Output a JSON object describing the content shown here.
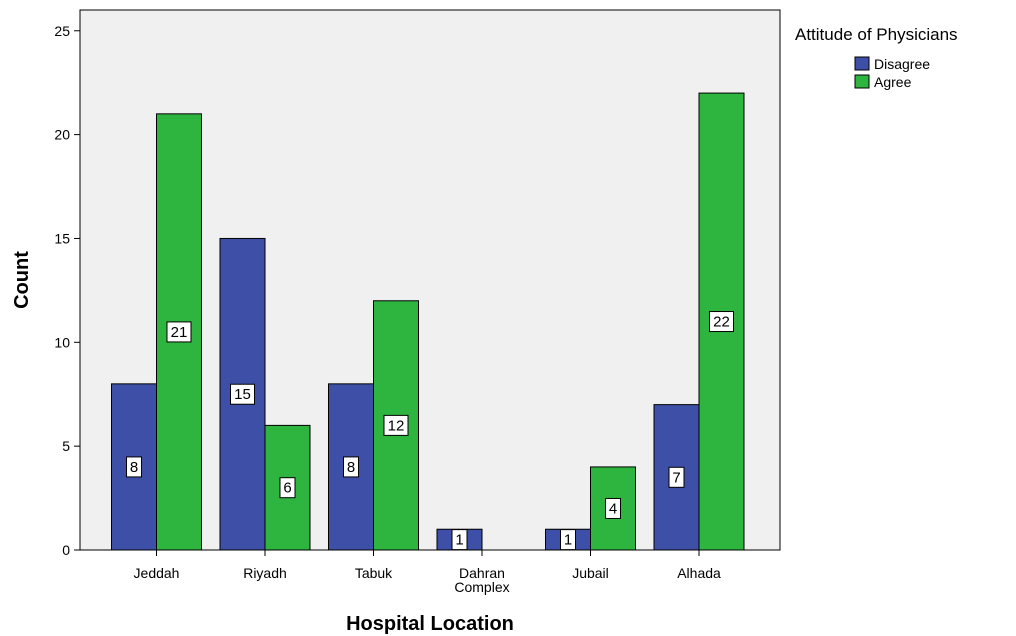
{
  "chart_data": {
    "type": "bar",
    "title": "",
    "xlabel": "Hospital Location",
    "ylabel": "Count",
    "ylim": [
      0,
      26
    ],
    "yticks": [
      0,
      5,
      10,
      15,
      20,
      25
    ],
    "grid": false,
    "legend": {
      "title": "Attitude of Physicians",
      "placement": "top-right-outside"
    },
    "categories": [
      [
        "Jeddah"
      ],
      [
        "Riyadh"
      ],
      [
        "Tabuk"
      ],
      [
        "Dahran",
        "Complex"
      ],
      [
        "Jubail"
      ],
      [
        "Alhada"
      ]
    ],
    "series": [
      {
        "name": "Disagree",
        "color": "#3d4fa6",
        "values": [
          8,
          15,
          8,
          1,
          1,
          7
        ]
      },
      {
        "name": "Agree",
        "color": "#2db53f",
        "values": [
          21,
          6,
          12,
          0,
          4,
          22
        ]
      }
    ]
  }
}
